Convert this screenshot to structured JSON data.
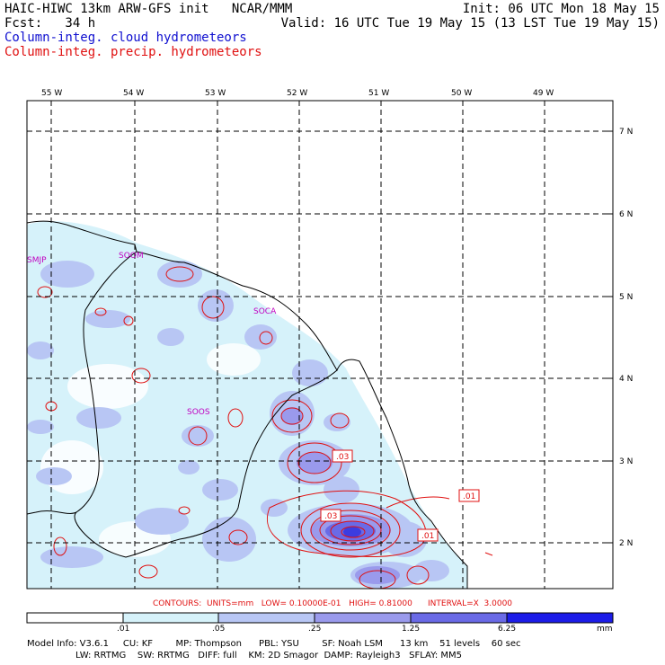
{
  "header": {
    "title_left": "HAIC-HIWC 13km ARW-GFS init   NCAR/MMM",
    "init": "Init: 06 UTC Mon 18 May 15",
    "fcst": "Fcst:   34 h",
    "valid": "Valid: 16 UTC Tue 19 May 15 (13 LST Tue 19 May 15)",
    "field_cloud": "Column-integ. cloud hydrometeors",
    "field_precip": "Column-integ. precip. hydrometeors"
  },
  "map": {
    "lon_labels": [
      "55 W",
      "54 W",
      "53 W",
      "52 W",
      "51 W",
      "50 W",
      "49 W"
    ],
    "lat_labels": [
      "7 N",
      "6 N",
      "5 N",
      "4 N",
      "3 N",
      "2 N"
    ],
    "stations": [
      "SMJP",
      "SOOM",
      "SOCA",
      "SOOS"
    ],
    "contour_labels": [
      ".03",
      ".01",
      ".03",
      ".01"
    ],
    "colors": {
      "coast": "#000000",
      "grid": "#000000",
      "precip": "#e01010",
      "station": "#c000c0"
    }
  },
  "contours_info": "CONTOURS:  UNITS=mm   LOW= 0.10000E-01   HIGH= 0.81000      INTERVAL=X  3.0000",
  "colorbar": {
    "labels": [
      ".01",
      ".05",
      ".25",
      "1.25",
      "6.25",
      "mm"
    ],
    "colors": [
      "#ffffff",
      "#d6f2fa",
      "#b8c6f4",
      "#9a9aec",
      "#6a6ae6",
      "#3c3ce0",
      "#1c1ce8"
    ]
  },
  "model_info": {
    "line1": "Model Info: V3.6.1     CU: KF        MP: Thompson      PBL: YSU        SF: Noah LSM      13 km    51 levels    60 sec",
    "line2": "                 LW: RRTMG    SW: RRTMG   DIFF: full    KM: 2D Smagor  DAMP: Rayleigh3   SFLAY: MM5"
  }
}
